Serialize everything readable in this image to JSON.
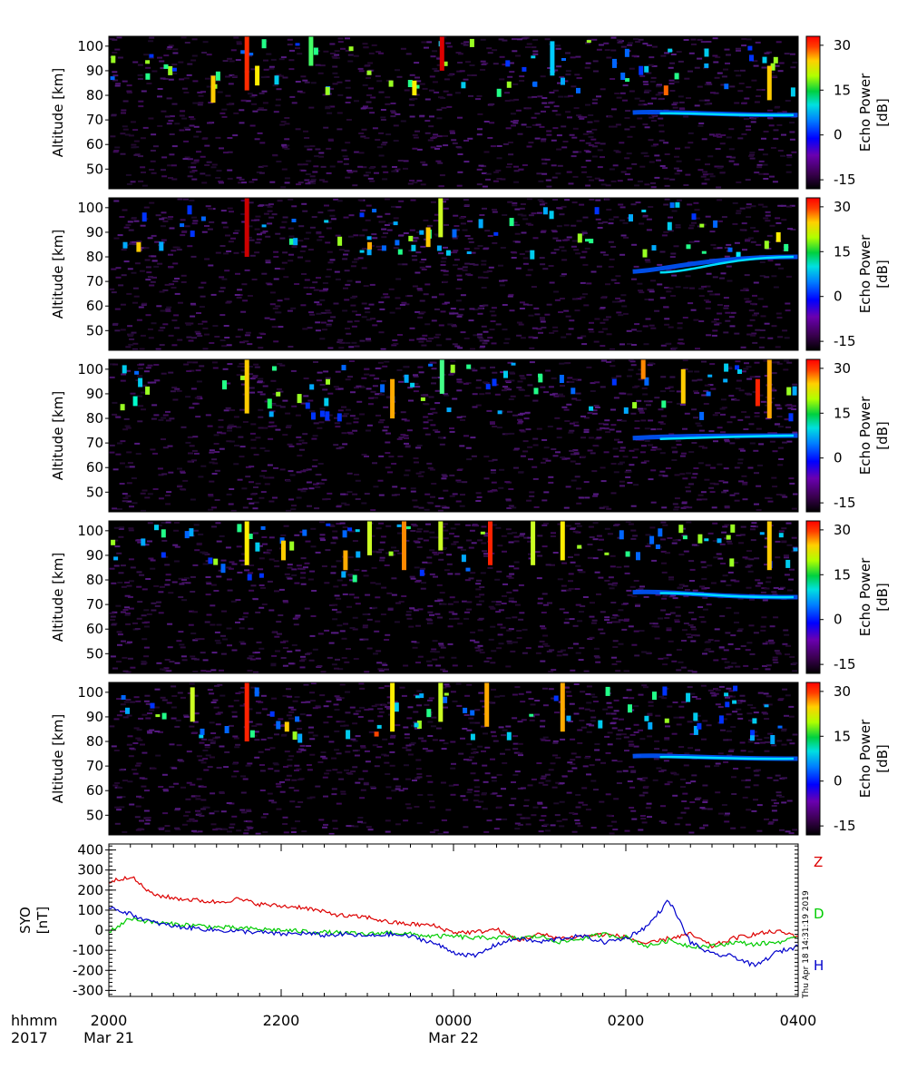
{
  "chart_data": [
    {
      "type": "heatmap",
      "panel": 1,
      "ylabel": "Altitude [km]",
      "yticks": [
        50,
        60,
        70,
        80,
        90,
        100
      ],
      "ylim": [
        42,
        104
      ],
      "colorbar": {
        "label_line1": "Echo Power",
        "label_line2": "[dB]",
        "ticks": [
          30,
          15,
          0,
          -15
        ],
        "range": [
          -18,
          33
        ]
      },
      "layer_alt_km": [
        73,
        72
      ],
      "bursts": [
        {
          "t": 0.197,
          "a1": 82,
          "a2": 104,
          "c": "#ff2b00"
        },
        {
          "t": 0.212,
          "a1": 84,
          "a2": 92,
          "c": "#ffee00"
        },
        {
          "t": 0.29,
          "a1": 92,
          "a2": 104,
          "c": "#44ff66"
        },
        {
          "t": 0.48,
          "a1": 90,
          "a2": 104,
          "c": "#dd0000"
        },
        {
          "t": 0.148,
          "a1": 77,
          "a2": 88,
          "c": "#ffcc00"
        },
        {
          "t": 0.44,
          "a1": 80,
          "a2": 86,
          "c": "#ffee00"
        },
        {
          "t": 0.64,
          "a1": 88,
          "a2": 102,
          "c": "#00ccff"
        },
        {
          "t": 0.955,
          "a1": 78,
          "a2": 92,
          "c": "#ffcc00"
        },
        {
          "t": 0.805,
          "a1": 80,
          "a2": 84,
          "c": "#ff6600"
        }
      ]
    },
    {
      "type": "heatmap",
      "panel": 2,
      "ylabel": "Altitude [km]",
      "yticks": [
        50,
        60,
        70,
        80,
        90,
        100
      ],
      "ylim": [
        42,
        104
      ],
      "colorbar": {
        "label_line1": "Echo Power",
        "label_line2": "[dB]",
        "ticks": [
          30,
          15,
          0,
          -15
        ],
        "range": [
          -18,
          33
        ]
      },
      "layer_alt_km": [
        74,
        80
      ],
      "bursts": [
        {
          "t": 0.197,
          "a1": 80,
          "a2": 104,
          "c": "#cc0000"
        },
        {
          "t": 0.478,
          "a1": 88,
          "a2": 104,
          "c": "#ccff22"
        },
        {
          "t": 0.46,
          "a1": 84,
          "a2": 92,
          "c": "#ffcc00"
        },
        {
          "t": 0.04,
          "a1": 82,
          "a2": 86,
          "c": "#ffcc00"
        },
        {
          "t": 0.375,
          "a1": 83,
          "a2": 86,
          "c": "#ffaa00"
        },
        {
          "t": 0.968,
          "a1": 86,
          "a2": 90,
          "c": "#ffee00"
        },
        {
          "t": 0.91,
          "a1": 80,
          "a2": 82,
          "c": "#00eeff"
        }
      ]
    },
    {
      "type": "heatmap",
      "panel": 3,
      "ylabel": "Altitude [km]",
      "yticks": [
        50,
        60,
        70,
        80,
        90,
        100
      ],
      "ylim": [
        42,
        104
      ],
      "colorbar": {
        "label_line1": "Echo Power",
        "label_line2": "[dB]",
        "ticks": [
          30,
          15,
          0,
          -15
        ],
        "range": [
          -18,
          33
        ]
      },
      "layer_alt_km": [
        72,
        73
      ],
      "bursts": [
        {
          "t": 0.197,
          "a1": 82,
          "a2": 104,
          "c": "#ffcc00"
        },
        {
          "t": 0.408,
          "a1": 80,
          "a2": 96,
          "c": "#ffaa00"
        },
        {
          "t": 0.48,
          "a1": 90,
          "a2": 104,
          "c": "#44ff88"
        },
        {
          "t": 0.772,
          "a1": 96,
          "a2": 104,
          "c": "#ff8800"
        },
        {
          "t": 0.955,
          "a1": 80,
          "a2": 104,
          "c": "#ffaa00"
        },
        {
          "t": 0.938,
          "a1": 85,
          "a2": 96,
          "c": "#ff2200"
        },
        {
          "t": 0.83,
          "a1": 86,
          "a2": 100,
          "c": "#ffcc00"
        },
        {
          "t": 0.035,
          "a1": 85,
          "a2": 89,
          "c": "#00ffcc"
        },
        {
          "t": 0.23,
          "a1": 84,
          "a2": 88,
          "c": "#22ff66"
        }
      ]
    },
    {
      "type": "heatmap",
      "panel": 4,
      "ylabel": "Altitude [km]",
      "yticks": [
        50,
        60,
        70,
        80,
        90,
        100
      ],
      "ylim": [
        42,
        104
      ],
      "colorbar": {
        "label_line1": "Echo Power",
        "label_line2": "[dB]",
        "ticks": [
          30,
          15,
          0,
          -15
        ],
        "range": [
          -18,
          33
        ]
      },
      "layer_alt_km": [
        75,
        73
      ],
      "bursts": [
        {
          "t": 0.197,
          "a1": 86,
          "a2": 104,
          "c": "#ffee00"
        },
        {
          "t": 0.375,
          "a1": 90,
          "a2": 104,
          "c": "#ccff22"
        },
        {
          "t": 0.425,
          "a1": 84,
          "a2": 104,
          "c": "#ff8800"
        },
        {
          "t": 0.478,
          "a1": 92,
          "a2": 104,
          "c": "#ccff22"
        },
        {
          "t": 0.55,
          "a1": 86,
          "a2": 104,
          "c": "#ff2200"
        },
        {
          "t": 0.612,
          "a1": 86,
          "a2": 104,
          "c": "#ccff22"
        },
        {
          "t": 0.655,
          "a1": 88,
          "a2": 104,
          "c": "#ffee00"
        },
        {
          "t": 0.955,
          "a1": 84,
          "a2": 104,
          "c": "#ffcc00"
        },
        {
          "t": 0.25,
          "a1": 88,
          "a2": 96,
          "c": "#ffcc00"
        },
        {
          "t": 0.34,
          "a1": 84,
          "a2": 92,
          "c": "#ffaa00"
        }
      ]
    },
    {
      "type": "heatmap",
      "panel": 5,
      "ylabel": "Altitude [km]",
      "yticks": [
        50,
        60,
        70,
        80,
        90,
        100
      ],
      "ylim": [
        42,
        104
      ],
      "colorbar": {
        "label_line1": "Echo Power",
        "label_line2": "[dB]",
        "ticks": [
          30,
          15,
          0,
          -15
        ],
        "range": [
          -18,
          33
        ]
      },
      "layer_alt_km": [
        74,
        73
      ],
      "bursts": [
        {
          "t": 0.118,
          "a1": 88,
          "a2": 102,
          "c": "#ccff22"
        },
        {
          "t": 0.197,
          "a1": 80,
          "a2": 104,
          "c": "#ff2200"
        },
        {
          "t": 0.408,
          "a1": 84,
          "a2": 104,
          "c": "#ffee00"
        },
        {
          "t": 0.478,
          "a1": 88,
          "a2": 104,
          "c": "#ccff22"
        },
        {
          "t": 0.545,
          "a1": 86,
          "a2": 104,
          "c": "#ffaa00"
        },
        {
          "t": 0.655,
          "a1": 84,
          "a2": 104,
          "c": "#ffaa00"
        },
        {
          "t": 0.255,
          "a1": 84,
          "a2": 88,
          "c": "#ffcc00"
        },
        {
          "t": 0.385,
          "a1": 82,
          "a2": 84,
          "c": "#ff4400"
        }
      ]
    },
    {
      "type": "line",
      "ylabel_line1": "SYO",
      "ylabel_line2": "[nT]",
      "yticks": [
        400,
        300,
        200,
        100,
        0,
        -100,
        -200,
        -300
      ],
      "ylim": [
        -330,
        430
      ],
      "xlim": [
        "2000 Mar 21",
        "0400 Mar 22"
      ],
      "x_hours": [
        0,
        0.25,
        0.5,
        0.75,
        1,
        1.25,
        1.5,
        1.75,
        2,
        2.25,
        2.5,
        2.75,
        3,
        3.25,
        3.5,
        3.75,
        4,
        4.25,
        4.5,
        4.75,
        5,
        5.25,
        5.5,
        5.75,
        6,
        6.25,
        6.5,
        6.75,
        7,
        7.25,
        7.5,
        7.75,
        8
      ],
      "series": [
        {
          "name": "Z",
          "color": "#dd0000",
          "values": [
            240,
            270,
            180,
            160,
            150,
            140,
            155,
            130,
            120,
            115,
            90,
            70,
            65,
            40,
            30,
            25,
            -10,
            -10,
            5,
            -50,
            -20,
            -40,
            -30,
            -20,
            -35,
            -70,
            -40,
            -20,
            -80,
            -40,
            -20,
            -5,
            -30
          ]
        },
        {
          "name": "D",
          "color": "#00cc00",
          "values": [
            -10,
            60,
            40,
            30,
            25,
            15,
            10,
            5,
            0,
            -5,
            -10,
            -15,
            -20,
            -10,
            -20,
            -30,
            -30,
            -40,
            -35,
            -40,
            -30,
            -60,
            -40,
            -20,
            -35,
            -80,
            -50,
            -80,
            -80,
            -60,
            -70,
            -60,
            -40
          ]
        },
        {
          "name": "H",
          "color": "#0000cc",
          "values": [
            120,
            80,
            40,
            20,
            10,
            0,
            -5,
            -10,
            -20,
            -15,
            -25,
            -20,
            -30,
            -20,
            -30,
            -60,
            -110,
            -130,
            -70,
            -40,
            -60,
            -40,
            -30,
            -60,
            -40,
            20,
            150,
            -60,
            -120,
            -130,
            -180,
            -110,
            -80
          ]
        }
      ]
    }
  ],
  "time_axis": {
    "row1_label": "hhmm",
    "row2_label": "2017",
    "ticks": [
      {
        "hhmm": "2000",
        "date": "Mar 21"
      },
      {
        "hhmm": "2200",
        "date": ""
      },
      {
        "hhmm": "0000",
        "date": "Mar 22"
      },
      {
        "hhmm": "0200",
        "date": ""
      },
      {
        "hhmm": "0400",
        "date": ""
      }
    ]
  },
  "timestamp": "Thu Apr 18 14:31:19 2019"
}
